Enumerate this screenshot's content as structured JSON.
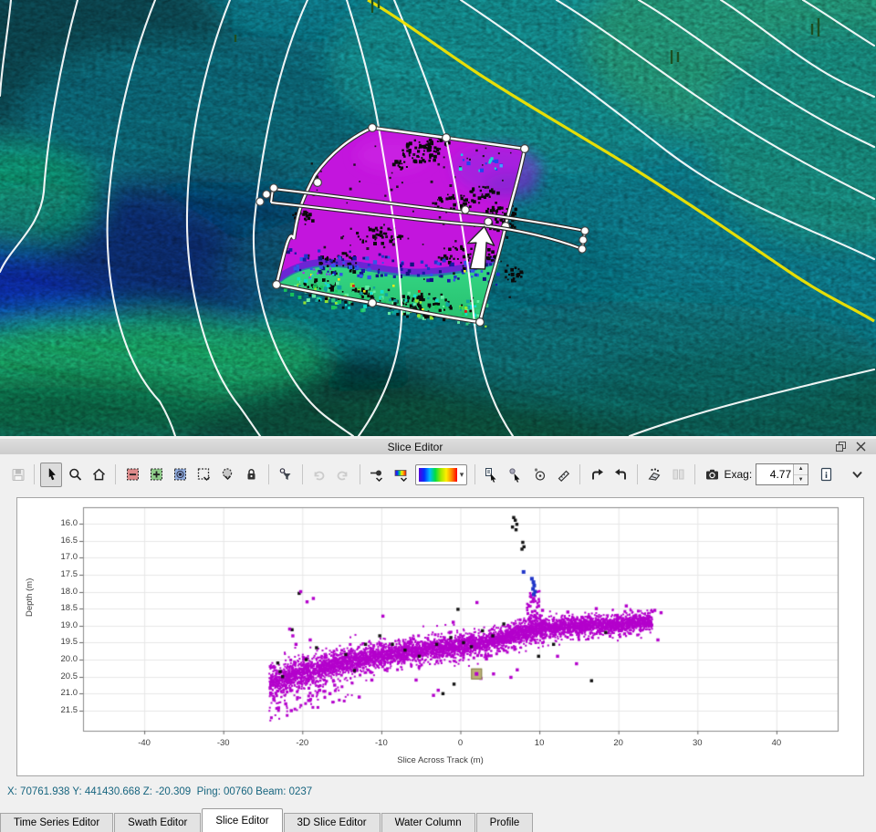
{
  "window": {
    "title": "Slice Editor"
  },
  "toolbar": {
    "exag_label": "Exag:",
    "exag_value": "4.77",
    "buttons": [
      {
        "icon": "save-icon",
        "disabled": true
      },
      {
        "sep": true
      },
      {
        "icon": "select-cursor-icon",
        "active": true
      },
      {
        "icon": "zoom-icon"
      },
      {
        "icon": "home-icon"
      },
      {
        "sep": true
      },
      {
        "icon": "reject-selection-icon"
      },
      {
        "icon": "accept-selection-icon"
      },
      {
        "icon": "examine-selection-icon"
      },
      {
        "icon": "rectangle-select-icon",
        "dropdown": true
      },
      {
        "icon": "circle-select-icon",
        "dropdown": true
      },
      {
        "icon": "lock-icon"
      },
      {
        "sep": true
      },
      {
        "icon": "filter-search-icon"
      },
      {
        "sep": true
      },
      {
        "icon": "undo-icon",
        "disabled": true
      },
      {
        "icon": "redo-icon",
        "disabled": true
      },
      {
        "sep": true
      },
      {
        "icon": "point-size-icon",
        "dropdown": true
      },
      {
        "icon": "color-range-icon",
        "dropdown": true
      },
      {
        "icon": "colormap-combobox"
      },
      {
        "sep": true
      },
      {
        "icon": "pick-info-cursor-icon"
      },
      {
        "icon": "pick-point-cursor-icon"
      },
      {
        "icon": "angle-measure-icon"
      },
      {
        "icon": "measure-icon"
      },
      {
        "sep": true
      },
      {
        "icon": "flag-forward-icon"
      },
      {
        "icon": "flag-back-icon"
      },
      {
        "sep": true
      },
      {
        "icon": "swath-edit-icon"
      },
      {
        "icon": "split-view-icon",
        "disabled": true
      },
      {
        "sep": true
      },
      {
        "icon": "camera-icon"
      }
    ],
    "right_buttons": [
      {
        "icon": "info-document-icon"
      },
      {
        "icon": "chevron-down-icon"
      }
    ]
  },
  "status": {
    "text": "X: 70761.938 Y: 441430.668 Z: -20.309  Ping: 00760 Beam: 0237"
  },
  "tabs": [
    {
      "label": "Time Series Editor",
      "active": false
    },
    {
      "label": "Swath Editor",
      "active": false
    },
    {
      "label": "Slice Editor",
      "active": true
    },
    {
      "label": "3D Slice Editor",
      "active": false
    },
    {
      "label": "Water Column",
      "active": false
    },
    {
      "label": "Profile",
      "active": false
    }
  ],
  "chart_data": {
    "type": "scatter",
    "xlabel": "Slice Across Track (m)",
    "ylabel": "Depth (m)",
    "xlim": [
      -47.7,
      47.7
    ],
    "ylim_depth": [
      15.5,
      22.1
    ],
    "x_ticks": [
      -40,
      -30,
      -20,
      -10,
      0,
      10,
      20,
      30,
      40
    ],
    "y_ticks": [
      16.0,
      16.5,
      17.0,
      17.5,
      18.0,
      18.5,
      19.0,
      19.5,
      20.0,
      20.5,
      21.0,
      21.5
    ],
    "grid": true,
    "point_color": "#b400cc",
    "series": [
      {
        "name": "accepted-soundings-band",
        "color": "#b400cc",
        "marker": "square",
        "band_trend": [
          {
            "x": -24.2,
            "depth": 20.68
          },
          {
            "x": -20,
            "depth": 20.36
          },
          {
            "x": -15,
            "depth": 20.1
          },
          {
            "x": -10,
            "depth": 19.86
          },
          {
            "x": -5,
            "depth": 19.72
          },
          {
            "x": 0,
            "depth": 19.6
          },
          {
            "x": 3,
            "depth": 19.5
          },
          {
            "x": 6,
            "depth": 19.35
          },
          {
            "x": 9,
            "depth": 19.12
          },
          {
            "x": 12,
            "depth": 19.05
          },
          {
            "x": 16,
            "depth": 19.0
          },
          {
            "x": 20,
            "depth": 18.95
          },
          {
            "x": 24.3,
            "depth": 18.88
          }
        ],
        "band_halfwidth_left": 0.36,
        "band_halfwidth_right": 0.22
      },
      {
        "name": "spike-cluster-magenta",
        "color": "#b400cc",
        "x_range": [
          7.8,
          9.8
        ],
        "depth_range": [
          17.95,
          19.1
        ]
      },
      {
        "name": "spike-cluster-blue",
        "color": "#1f35c8",
        "points": [
          [
            8.0,
            17.42
          ],
          [
            9.05,
            17.62
          ],
          [
            9.25,
            17.72
          ],
          [
            9.35,
            17.82
          ],
          [
            9.2,
            17.92
          ],
          [
            9.45,
            18.0
          ],
          [
            9.3,
            18.08
          ]
        ]
      },
      {
        "name": "rejected-black",
        "color": "#111111",
        "points": [
          [
            6.75,
            15.82
          ],
          [
            6.95,
            15.9
          ],
          [
            7.15,
            16.02
          ],
          [
            6.6,
            16.1
          ],
          [
            7.05,
            16.18
          ],
          [
            7.9,
            16.55
          ],
          [
            8.05,
            16.68
          ],
          [
            7.8,
            16.75
          ],
          [
            -21.3,
            19.12
          ],
          [
            -23.1,
            20.1
          ],
          [
            -22.8,
            20.35
          ],
          [
            -22.5,
            20.5
          ],
          [
            -20.4,
            18.05
          ],
          [
            -19.5,
            20.0
          ],
          [
            -18.2,
            19.65
          ],
          [
            -14.5,
            19.85
          ],
          [
            -12.0,
            19.55
          ],
          [
            -10.2,
            19.3
          ],
          [
            -8.6,
            19.55
          ],
          [
            -7.0,
            19.72
          ],
          [
            -5.2,
            19.9
          ],
          [
            -3.0,
            19.55
          ],
          [
            -1.2,
            19.35
          ],
          [
            -0.3,
            18.52
          ],
          [
            0.4,
            19.5
          ],
          [
            1.4,
            19.62
          ],
          [
            2.8,
            19.15
          ],
          [
            4.1,
            19.3
          ],
          [
            5.5,
            18.95
          ],
          [
            9.9,
            19.9
          ],
          [
            11.8,
            19.55
          ],
          [
            16.6,
            20.62
          ],
          [
            -0.8,
            20.72
          ],
          [
            -13.4,
            20.32
          ],
          [
            -2.2,
            21.0
          ],
          [
            18.4,
            19.2
          ]
        ]
      },
      {
        "name": "sparse-outliers-magenta",
        "color": "#b400cc",
        "points": [
          [
            -21.6,
            19.1
          ],
          [
            -21.2,
            19.3
          ],
          [
            -20.8,
            19.55
          ],
          [
            -19.0,
            19.42
          ],
          [
            -20.2,
            18.0
          ],
          [
            -19.4,
            18.3
          ],
          [
            -18.6,
            18.2
          ],
          [
            -9.8,
            18.72
          ],
          [
            -0.9,
            18.9
          ],
          [
            2.1,
            18.32
          ],
          [
            9.9,
            18.42
          ],
          [
            10.4,
            18.55
          ],
          [
            12.3,
            19.9
          ],
          [
            14.7,
            20.12
          ],
          [
            6.4,
            20.52
          ],
          [
            4.2,
            20.42
          ],
          [
            2.6,
            20.55
          ],
          [
            -2.8,
            20.9
          ],
          [
            -3.4,
            21.05
          ],
          [
            -23.6,
            21.18
          ],
          [
            -23.0,
            21.42
          ],
          [
            -22.1,
            21.3
          ],
          [
            -21.4,
            21.5
          ],
          [
            -20.6,
            21.12
          ],
          [
            -24.0,
            20.98
          ],
          [
            -19.2,
            21.2
          ],
          [
            -17.8,
            20.9
          ],
          [
            25.0,
            19.42
          ],
          [
            24.6,
            18.55
          ],
          [
            25.4,
            18.62
          ],
          [
            -15.9,
            20.75
          ],
          [
            -11.2,
            20.6
          ],
          [
            7.2,
            20.3
          ],
          [
            3.3,
            19.98
          ],
          [
            -5.6,
            20.6
          ],
          [
            13.6,
            18.6
          ],
          [
            17.2,
            18.5
          ],
          [
            21.0,
            18.42
          ],
          [
            -16.5,
            21.0
          ],
          [
            -12.8,
            21.1
          ]
        ]
      },
      {
        "name": "selected-sounding",
        "color": "#b400cc",
        "highlight_fill": "#bcb176",
        "highlight_border": "#86804a",
        "points": [
          [
            2.05,
            20.42
          ]
        ]
      }
    ]
  },
  "view3d": {
    "selection_fill": "#c315dd",
    "contour_color": "#ffffff",
    "highlight_contour_color": "#f2e400",
    "handle_fill": "#ffffff",
    "slice_zone_colors": [
      "#39e08a",
      "#2233cc",
      "#18c8e8"
    ],
    "vessel_marker": "up-arrow"
  }
}
